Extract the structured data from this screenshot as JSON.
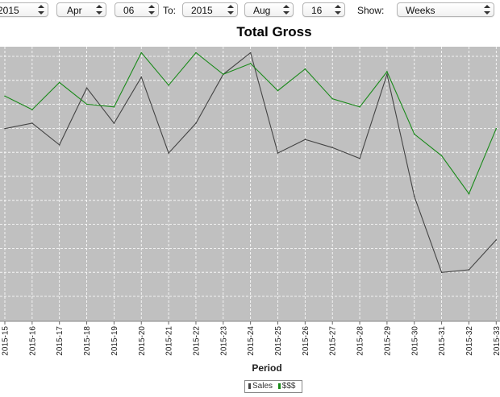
{
  "controls": {
    "from_year": "2015",
    "from_month": "Apr",
    "from_day": "06",
    "to_label": "To:",
    "to_year": "2015",
    "to_month": "Aug",
    "to_day": "16",
    "show_label": "Show:",
    "show_value": "Weeks"
  },
  "colors": {
    "plot_bg": "#c0c0c0",
    "grid": "#ffffff",
    "sales": "#444444",
    "money": "#1a8a1a"
  },
  "chart_data": {
    "type": "line",
    "title": "Total Gross",
    "xlabel": "Period",
    "ylabel": "",
    "categories": [
      "2015-15",
      "2015-16",
      "2015-17",
      "2015-18",
      "2015-19",
      "2015-20",
      "2015-21",
      "2015-22",
      "2015-23",
      "2015-24",
      "2015-25",
      "2015-26",
      "2015-27",
      "2015-28",
      "2015-29",
      "2015-30",
      "2015-31",
      "2015-32",
      "2015-33"
    ],
    "ylim": [
      0,
      100
    ],
    "grid": true,
    "legend_position": "bottom",
    "series": [
      {
        "name": "Sales",
        "values": [
          71,
          73,
          65,
          86,
          73,
          90,
          62,
          73,
          91,
          99,
          62,
          67,
          64,
          60,
          91,
          46,
          18,
          19,
          30
        ]
      },
      {
        "name": "$$$",
        "values": [
          83,
          78,
          88,
          80,
          79,
          99,
          87,
          99,
          91,
          95,
          85,
          93,
          82,
          79,
          92,
          69,
          61,
          47,
          71
        ]
      }
    ]
  }
}
